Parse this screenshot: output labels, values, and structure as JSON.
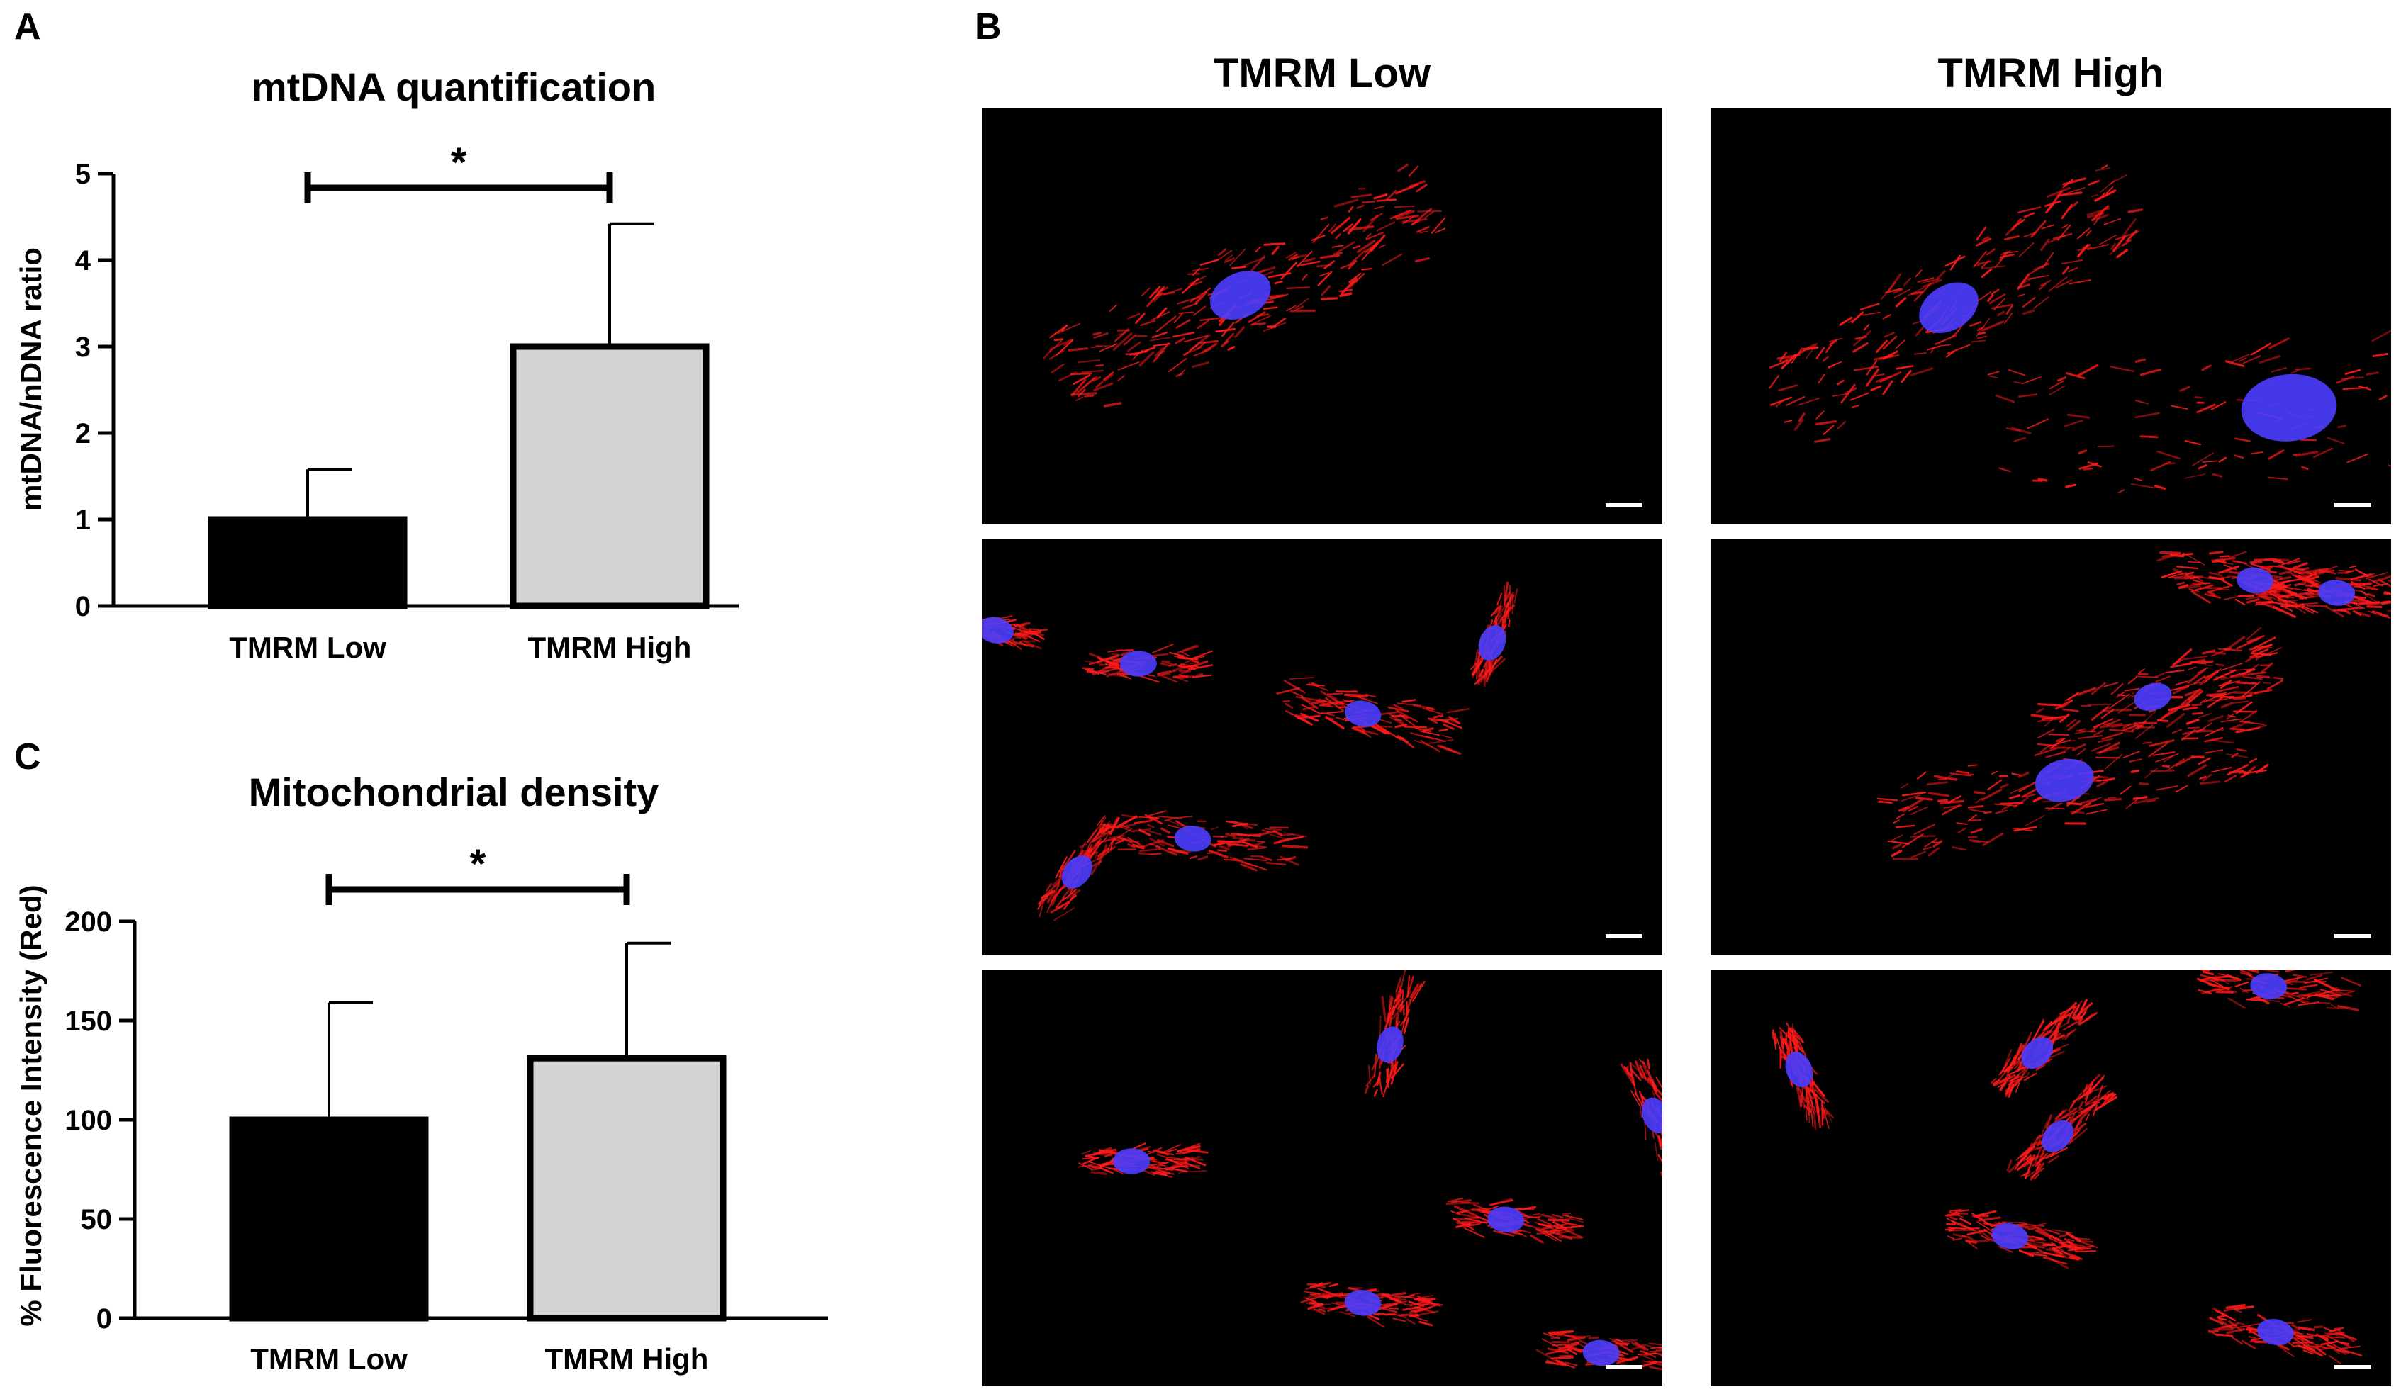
{
  "panels": {
    "a": "A",
    "b": "B",
    "c": "C"
  },
  "chart_data": [
    {
      "type": "bar",
      "title": "mtDNA quantification",
      "ylabel": "mtDNA/nDNA ratio",
      "xlabel": "",
      "categories": [
        "TMRM Low",
        "TMRM High"
      ],
      "values": [
        1.0,
        3.0
      ],
      "error": [
        0.58,
        1.42
      ],
      "ylim": [
        0,
        5
      ],
      "yticks": [
        0,
        1,
        2,
        3,
        4,
        5
      ],
      "colors": [
        "#000000",
        "#d3d3d3"
      ],
      "significance": "*"
    },
    {
      "type": "bar",
      "title": "Mitochondrial density",
      "ylabel": "% Fluorescence Intensity (Red)",
      "xlabel": "",
      "categories": [
        "TMRM Low",
        "TMRM High"
      ],
      "values": [
        100,
        131
      ],
      "error": [
        59,
        58
      ],
      "ylim": [
        0,
        200
      ],
      "yticks": [
        0,
        50,
        100,
        150,
        200
      ],
      "colors": [
        "#000000",
        "#d3d3d3"
      ],
      "significance": "*"
    }
  ],
  "micrographs": {
    "columns": [
      "TMRM Low",
      "TMRM High"
    ],
    "stain_colors": {
      "mitochondria": "#ff1a1a",
      "nucleus": "#4a3dff",
      "background": "#000000"
    }
  }
}
